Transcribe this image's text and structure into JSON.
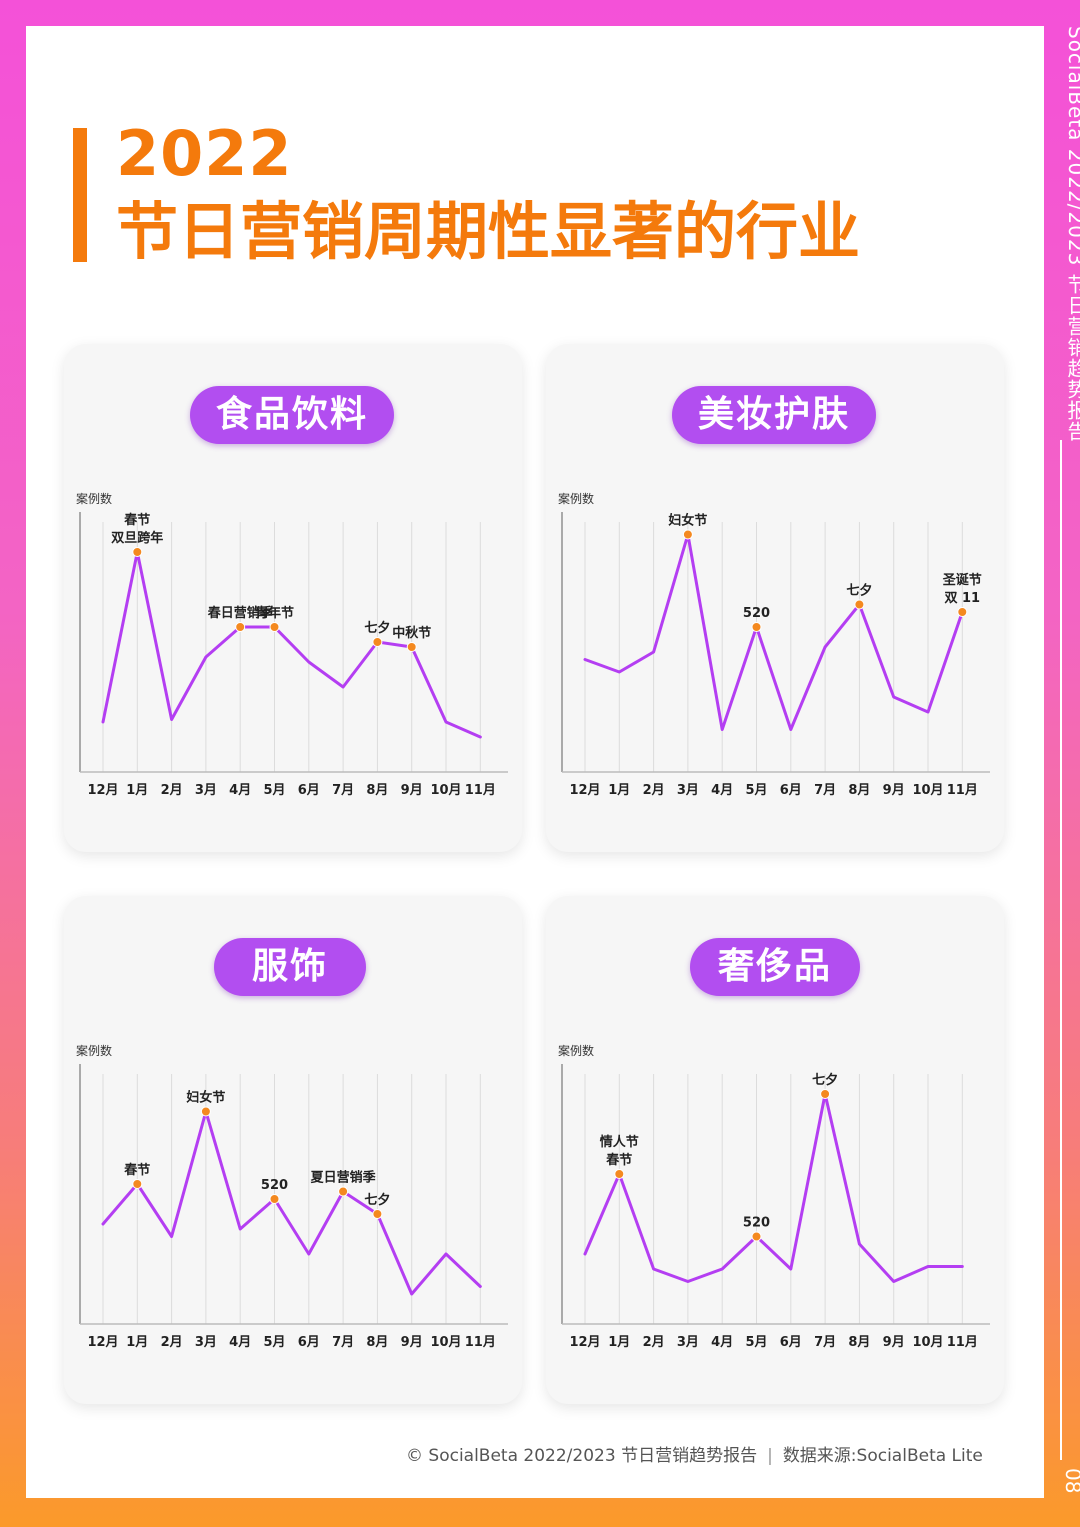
{
  "title": {
    "year": "2022",
    "main": "节日营销周期性显著的行业"
  },
  "side": {
    "report": "SocialBeta 2022/2023 节日营销趋势报告",
    "page": "08"
  },
  "footer": {
    "copyright": "© SocialBeta 2022/2023 节日营销趋势报告",
    "source": "数据来源:SocialBeta Lite"
  },
  "chart_data": [
    {
      "type": "line",
      "title": "食品饮料",
      "ylabel": "案例数",
      "categories": [
        "12月",
        "1月",
        "2月",
        "3月",
        "4月",
        "5月",
        "6月",
        "7月",
        "8月",
        "9月",
        "10月",
        "11月"
      ],
      "values": [
        0.2,
        0.88,
        0.21,
        0.46,
        0.58,
        0.58,
        0.44,
        0.34,
        0.52,
        0.5,
        0.2,
        0.14
      ],
      "annotations": [
        {
          "index": 1,
          "label": [
            "春节",
            "双旦跨年"
          ]
        },
        {
          "index": 4,
          "label": [
            "春日营销季"
          ]
        },
        {
          "index": 5,
          "label": [
            "青年节"
          ]
        },
        {
          "index": 8,
          "label": [
            "七夕"
          ]
        },
        {
          "index": 9,
          "label": [
            "中秋节"
          ]
        }
      ]
    },
    {
      "type": "line",
      "title": "美妆护肤",
      "ylabel": "案例数",
      "categories": [
        "12月",
        "1月",
        "2月",
        "3月",
        "4月",
        "5月",
        "6月",
        "7月",
        "8月",
        "9月",
        "10月",
        "11月"
      ],
      "values": [
        0.45,
        0.4,
        0.48,
        0.95,
        0.17,
        0.58,
        0.17,
        0.5,
        0.67,
        0.3,
        0.24,
        0.64
      ],
      "annotations": [
        {
          "index": 3,
          "label": [
            "妇女节"
          ]
        },
        {
          "index": 5,
          "label": [
            "520"
          ]
        },
        {
          "index": 8,
          "label": [
            "七夕"
          ]
        },
        {
          "index": 11,
          "label": [
            "圣诞节",
            "双 11"
          ]
        }
      ]
    },
    {
      "type": "line",
      "title": "服饰",
      "ylabel": "案例数",
      "categories": [
        "12月",
        "1月",
        "2月",
        "3月",
        "4月",
        "5月",
        "6月",
        "7月",
        "8月",
        "9月",
        "10月",
        "11月"
      ],
      "values": [
        0.4,
        0.56,
        0.35,
        0.85,
        0.38,
        0.5,
        0.28,
        0.53,
        0.44,
        0.12,
        0.28,
        0.15
      ],
      "annotations": [
        {
          "index": 1,
          "label": [
            "春节"
          ]
        },
        {
          "index": 3,
          "label": [
            "妇女节"
          ]
        },
        {
          "index": 5,
          "label": [
            "520"
          ]
        },
        {
          "index": 7,
          "label": [
            "夏日营销季"
          ]
        },
        {
          "index": 8,
          "label": [
            "七夕"
          ]
        }
      ]
    },
    {
      "type": "line",
      "title": "奢侈品",
      "ylabel": "案例数",
      "categories": [
        "12月",
        "1月",
        "2月",
        "3月",
        "4月",
        "5月",
        "6月",
        "7月",
        "8月",
        "9月",
        "10月",
        "11月"
      ],
      "values": [
        0.28,
        0.6,
        0.22,
        0.17,
        0.22,
        0.35,
        0.22,
        0.92,
        0.32,
        0.17,
        0.23,
        0.23
      ],
      "annotations": [
        {
          "index": 1,
          "label": [
            "情人节",
            "春节"
          ]
        },
        {
          "index": 5,
          "label": [
            "520"
          ]
        },
        {
          "index": 7,
          "label": [
            "七夕"
          ]
        }
      ]
    }
  ]
}
